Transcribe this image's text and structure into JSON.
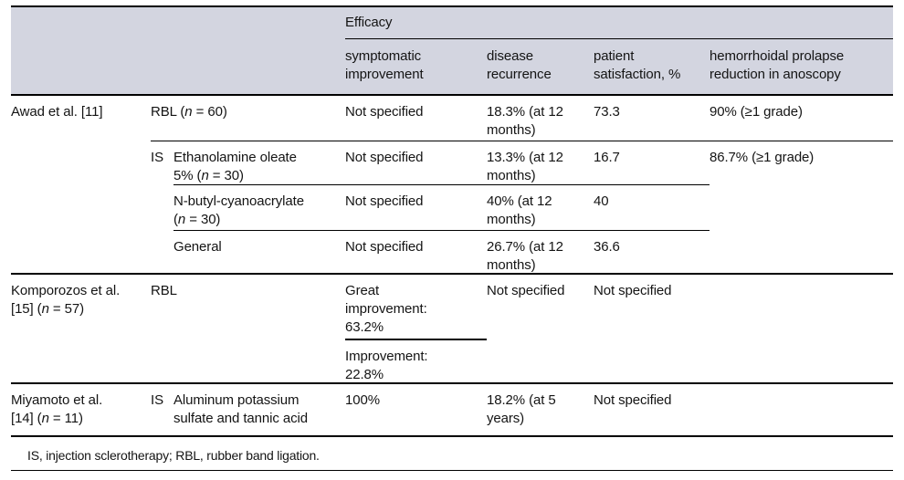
{
  "colors": {
    "header_bg": "#d3d5e0"
  },
  "header": {
    "group": "Efficacy",
    "col_symptomatic": "symptomatic\nimprovement",
    "col_disease": "disease\nrecurrence",
    "col_patient": "patient\nsatisfaction, %",
    "col_hemorrhoid": "hemorrhoidal prolapse\nreduction in anoscopy"
  },
  "awad": {
    "study": "Awad et al. [11]",
    "is_marker": "IS",
    "rbl": {
      "treatment": "RBL (n = 60)",
      "symptomatic": "Not specified",
      "disease": "18.3% (at 12\nmonths)",
      "patient": "73.3",
      "hemorrhoid": "90% (≥1 grade)"
    },
    "ethanolamine": {
      "treatment": "Ethanolamine oleate\n5% (n = 30)",
      "symptomatic": "Not specified",
      "disease": "13.3% (at 12\nmonths)",
      "patient": "16.7",
      "hemorrhoid": "86.7% (≥1 grade)"
    },
    "nbutyl": {
      "treatment": "N-butyl-cyanoacrylate\n(n = 30)",
      "symptomatic": "Not specified",
      "disease": "40% (at 12\nmonths)",
      "patient": "40"
    },
    "general": {
      "treatment": "General",
      "symptomatic": "Not specified",
      "disease": "26.7% (at 12\nmonths)",
      "patient": "36.6"
    }
  },
  "komporozos": {
    "study": "Komporozos et al.\n[15] (n = 57)",
    "treatment": "RBL",
    "symptomatic_great": "Great\nimprovement:\n63.2%",
    "symptomatic_improvement": "Improvement:\n22.8%",
    "disease": "Not specified",
    "patient": "Not specified"
  },
  "miyamoto": {
    "study": "Miyamoto et al.\n[14] (n = 11)",
    "is_marker": "IS",
    "treatment": "Aluminum potassium\nsulfate and tannic acid",
    "symptomatic": "100%",
    "disease": "18.2% (at 5\nyears)",
    "patient": "Not specified"
  },
  "footnote": "IS, injection sclerotherapy; RBL, rubber band ligation."
}
